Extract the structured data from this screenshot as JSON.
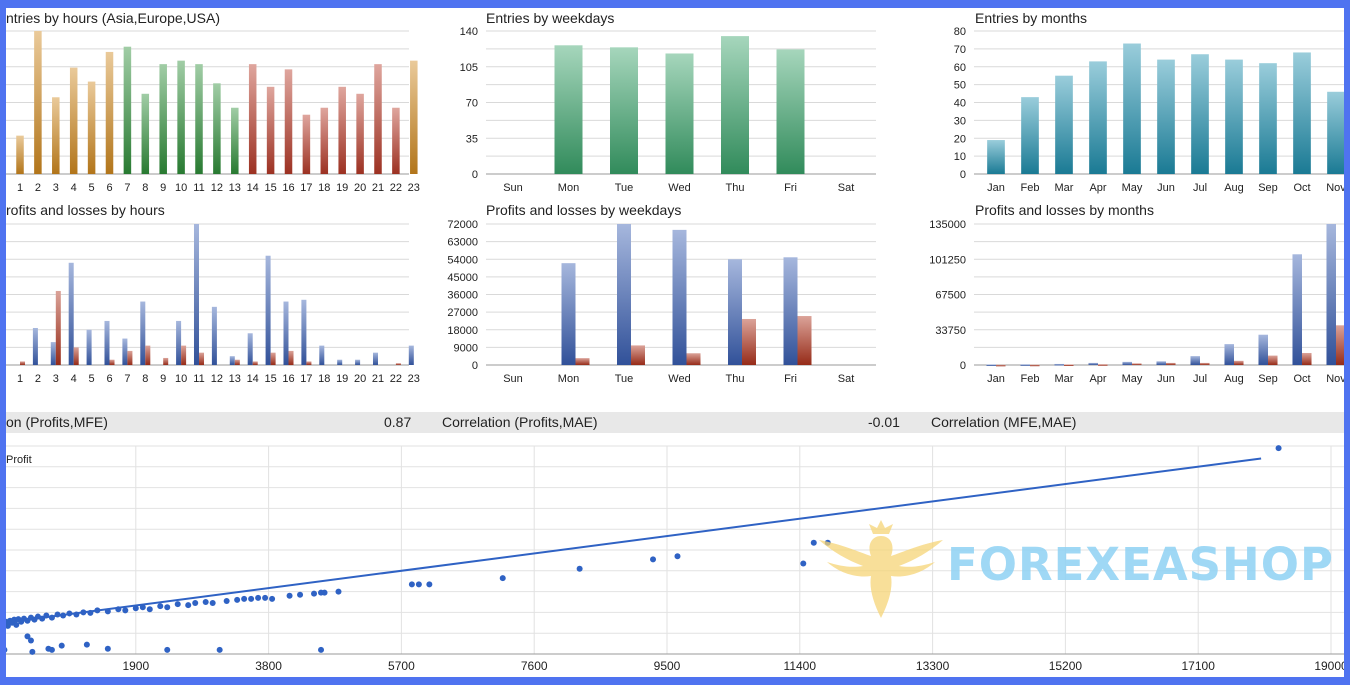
{
  "colors": {
    "frame": "#4f73f0",
    "orange": "#d18a1e",
    "green": "#2f8f3a",
    "red": "#b83a28",
    "teal_green": "#3aa36b",
    "cyan": "#1f8fae",
    "blue": "#3a5fb4",
    "dark_red": "#b0321c",
    "scatter": "#2f62c4",
    "watermark": "#8fd2f4"
  },
  "chart_data": [
    {
      "id": "entries_hours",
      "type": "bar",
      "title": "ntries by hours (Asia,Europe,USA)",
      "categories": [
        "1",
        "2",
        "3",
        "4",
        "5",
        "6",
        "7",
        "8",
        "9",
        "10",
        "11",
        "12",
        "13",
        "14",
        "15",
        "16",
        "17",
        "18",
        "19",
        "20",
        "21",
        "22",
        "23"
      ],
      "values": [
        22,
        82,
        44,
        61,
        53,
        70,
        73,
        46,
        63,
        65,
        63,
        52,
        38,
        63,
        50,
        60,
        34,
        38,
        50,
        46,
        63,
        38,
        65
      ],
      "colors_by_index": [
        "orange",
        "orange",
        "orange",
        "orange",
        "orange",
        "orange",
        "green",
        "green",
        "green",
        "green",
        "green",
        "green",
        "green",
        "red",
        "red",
        "red",
        "red",
        "red",
        "red",
        "red",
        "red",
        "red",
        "orange"
      ],
      "ylim": [
        0,
        82
      ],
      "gridlines": 8,
      "show_y_ticks": false
    },
    {
      "id": "entries_weekdays",
      "type": "bar",
      "title": "Entries by weekdays",
      "categories": [
        "Sun",
        "Mon",
        "Tue",
        "Wed",
        "Thu",
        "Fri",
        "Sat"
      ],
      "values": [
        0,
        126,
        124,
        118,
        135,
        122,
        0
      ],
      "color": "teal_green",
      "ylim": [
        0,
        140
      ],
      "yticks": [
        0,
        35,
        70,
        105,
        140
      ],
      "gridlines": 8
    },
    {
      "id": "entries_months",
      "type": "bar",
      "title": "Entries by months",
      "categories": [
        "Jan",
        "Feb",
        "Mar",
        "Apr",
        "May",
        "Jun",
        "Jul",
        "Aug",
        "Sep",
        "Oct",
        "Nov"
      ],
      "values": [
        19,
        43,
        55,
        63,
        73,
        64,
        67,
        64,
        62,
        68,
        46
      ],
      "color": "cyan",
      "ylim": [
        0,
        80
      ],
      "yticks": [
        0,
        10,
        20,
        30,
        40,
        50,
        60,
        70,
        80
      ],
      "gridlines": 8
    },
    {
      "id": "pl_hours",
      "type": "bar",
      "title": "rofits and losses by hours",
      "categories": [
        "1",
        "2",
        "3",
        "4",
        "5",
        "6",
        "7",
        "8",
        "9",
        "10",
        "11",
        "12",
        "13",
        "14",
        "15",
        "16",
        "17",
        "18",
        "19",
        "20",
        "21",
        "22",
        "23"
      ],
      "series": [
        {
          "values": [
            0,
            21,
            13,
            58,
            20,
            25,
            15,
            36,
            0,
            25,
            80,
            33,
            5,
            18,
            62,
            36,
            37,
            11,
            3,
            3,
            7,
            0,
            11
          ]
        },
        {
          "values": [
            2,
            0,
            42,
            10,
            0,
            3,
            8,
            11,
            4,
            11,
            7,
            0,
            3,
            2,
            7,
            8,
            2,
            0,
            0,
            0,
            0,
            1,
            0
          ]
        }
      ],
      "series_colors": [
        "blue",
        "dark_red"
      ],
      "series_offset": [
        -0.5,
        0.5
      ],
      "ylim": [
        0,
        80
      ],
      "gridlines": 8,
      "show_y_ticks": false
    },
    {
      "id": "pl_weekdays",
      "type": "bar",
      "title": "Profits and losses by weekdays",
      "categories": [
        "Sun",
        "Mon",
        "Tue",
        "Wed",
        "Thu",
        "Fri",
        "Sat"
      ],
      "series": [
        {
          "values": [
            0,
            52000,
            72000,
            69000,
            54000,
            55000,
            0
          ]
        },
        {
          "values": [
            0,
            3500,
            10000,
            6000,
            23500,
            25000,
            0
          ]
        }
      ],
      "series_colors": [
        "blue",
        "dark_red"
      ],
      "series_offset": [
        0,
        1
      ],
      "ylim": [
        0,
        72000
      ],
      "yticks": [
        0,
        9000,
        18000,
        27000,
        36000,
        45000,
        54000,
        63000,
        72000
      ],
      "gridlines": 8
    },
    {
      "id": "pl_months",
      "type": "bar",
      "title": "Profits and losses by months",
      "categories": [
        "Jan",
        "Feb",
        "Mar",
        "Apr",
        "May",
        "Jun",
        "Jul",
        "Aug",
        "Sep",
        "Oct",
        "Nov"
      ],
      "series": [
        {
          "values": [
            500,
            600,
            1000,
            2000,
            3000,
            3500,
            8500,
            20000,
            29000,
            106000,
            135000
          ]
        },
        {
          "values": [
            200,
            300,
            500,
            700,
            1500,
            2000,
            2000,
            4000,
            9000,
            11500,
            38000
          ]
        }
      ],
      "series_colors": [
        "blue",
        "dark_red"
      ],
      "series_offset": [
        -0.5,
        0.5
      ],
      "ylim": [
        0,
        135000
      ],
      "yticks": [
        0,
        33750,
        67500,
        101250,
        135000
      ],
      "gridlines": 8
    },
    {
      "id": "scatter_profit",
      "type": "scatter",
      "title": "Profit",
      "xlim": [
        0,
        19000
      ],
      "ylim": [
        -3000,
        17000
      ],
      "xticks": [
        1900,
        3800,
        5700,
        7600,
        9500,
        11400,
        13300,
        15200,
        17100,
        19000
      ],
      "trendline": [
        [
          0,
          0
        ],
        [
          18000,
          15800
        ]
      ],
      "points": [
        [
          10,
          -100
        ],
        [
          40,
          100
        ],
        [
          70,
          -300
        ],
        [
          100,
          200
        ],
        [
          130,
          0
        ],
        [
          160,
          300
        ],
        [
          190,
          -200
        ],
        [
          220,
          350
        ],
        [
          260,
          100
        ],
        [
          300,
          400
        ],
        [
          350,
          200
        ],
        [
          400,
          500
        ],
        [
          450,
          300
        ],
        [
          500,
          600
        ],
        [
          560,
          400
        ],
        [
          620,
          700
        ],
        [
          700,
          500
        ],
        [
          780,
          800
        ],
        [
          860,
          700
        ],
        [
          950,
          900
        ],
        [
          1050,
          800
        ],
        [
          1150,
          1000
        ],
        [
          1250,
          950
        ],
        [
          1350,
          1200
        ],
        [
          1500,
          1100
        ],
        [
          1650,
          1300
        ],
        [
          1750,
          1200
        ],
        [
          1900,
          1400
        ],
        [
          2000,
          1500
        ],
        [
          2100,
          1300
        ],
        [
          2250,
          1600
        ],
        [
          2350,
          1500
        ],
        [
          2500,
          1800
        ],
        [
          2650,
          1700
        ],
        [
          2750,
          1900
        ],
        [
          2900,
          2000
        ],
        [
          3000,
          1900
        ],
        [
          3200,
          2100
        ],
        [
          3350,
          2200
        ],
        [
          3450,
          2300
        ],
        [
          3550,
          2300
        ],
        [
          3650,
          2400
        ],
        [
          3750,
          2400
        ],
        [
          3850,
          2300
        ],
        [
          4100,
          2600
        ],
        [
          4250,
          2700
        ],
        [
          4450,
          2800
        ],
        [
          4550,
          2900
        ],
        [
          4600,
          2900
        ],
        [
          4800,
          3000
        ],
        [
          5850,
          3700
        ],
        [
          5950,
          3700
        ],
        [
          6100,
          3700
        ],
        [
          7150,
          4300
        ],
        [
          8250,
          5200
        ],
        [
          9300,
          6100
        ],
        [
          9650,
          6400
        ],
        [
          11450,
          5700
        ],
        [
          11600,
          7700
        ],
        [
          11800,
          7700
        ],
        [
          18250,
          16800
        ],
        [
          20,
          -2600
        ],
        [
          350,
          -1300
        ],
        [
          400,
          -1700
        ],
        [
          420,
          -2800
        ],
        [
          650,
          -2500
        ],
        [
          700,
          -2600
        ],
        [
          840,
          -2200
        ],
        [
          1200,
          -2100
        ],
        [
          1500,
          -2500
        ],
        [
          2350,
          -2600
        ],
        [
          3100,
          -2600
        ],
        [
          4550,
          -2600
        ]
      ]
    }
  ],
  "correlations": [
    {
      "label": "on (Profits,MFE)",
      "value": "0.87"
    },
    {
      "label": "Correlation (Profits,MAE)",
      "value": "-0.01"
    },
    {
      "label": "Correlation (MFE,MAE)",
      "value": ""
    }
  ],
  "watermark": {
    "text": "FOREXEASHOP",
    "logo_icon": "eagle-crest-icon"
  }
}
